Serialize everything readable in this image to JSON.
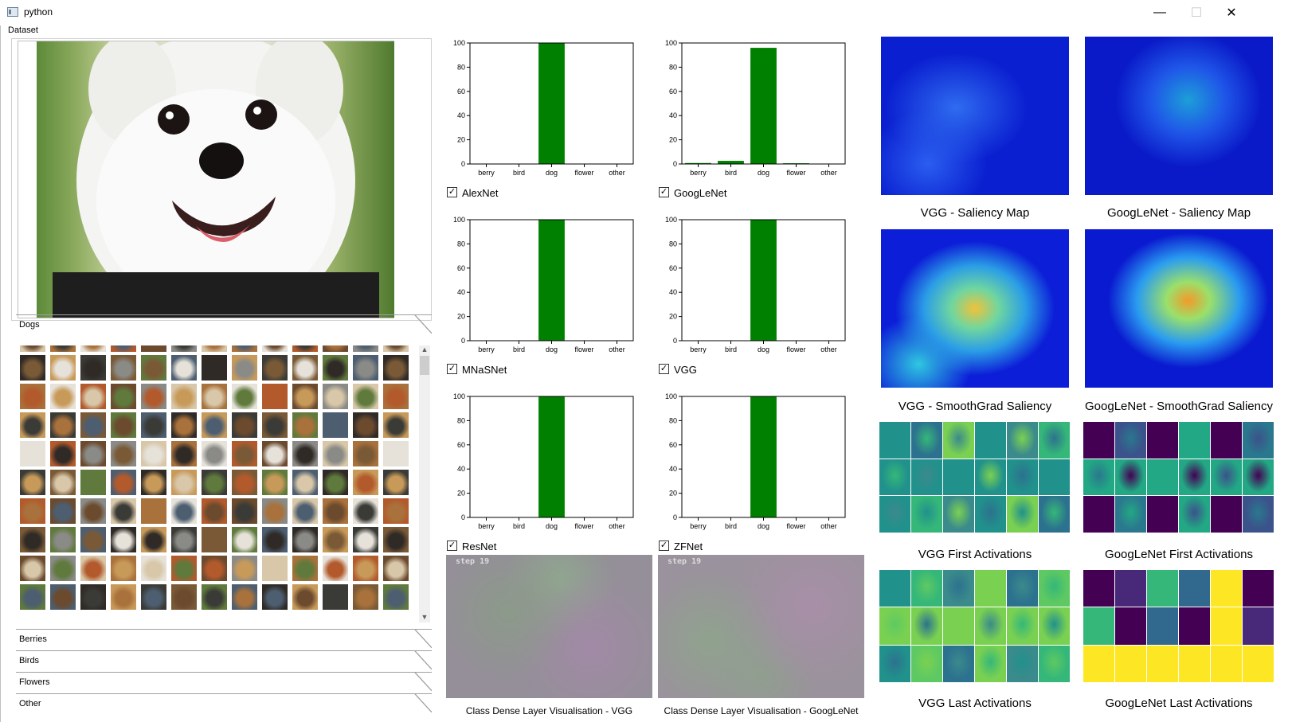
{
  "window": {
    "title": "python",
    "minimize_glyph": "—",
    "maximize_glyph": "☐",
    "close_glyph": "✕"
  },
  "dataset": {
    "group_label": "Dataset",
    "categories": [
      "Dogs",
      "Berries",
      "Birds",
      "Flowers",
      "Other"
    ],
    "active_category": "Dogs"
  },
  "scroll": {
    "up": "▲",
    "down": "▼"
  },
  "models": [
    {
      "name": "AlexNet",
      "checked": true,
      "check_glyph": "✓"
    },
    {
      "name": "GoogLeNet",
      "checked": true,
      "check_glyph": "✓"
    },
    {
      "name": "MNaSNet",
      "checked": true,
      "check_glyph": "✓"
    },
    {
      "name": "VGG",
      "checked": true,
      "check_glyph": "✓"
    },
    {
      "name": "ResNet",
      "checked": true,
      "check_glyph": "✓"
    },
    {
      "name": "ZFNet",
      "checked": true,
      "check_glyph": "✓"
    }
  ],
  "chart_data": [
    {
      "type": "bar",
      "categories": [
        "berry",
        "bird",
        "dog",
        "flower",
        "other"
      ],
      "values": [
        0,
        0,
        100,
        0,
        0
      ],
      "ylim": [
        0,
        100
      ],
      "yticks": [
        0,
        20,
        40,
        60,
        80,
        100
      ],
      "color": "#008000"
    },
    {
      "type": "bar",
      "categories": [
        "berry",
        "bird",
        "dog",
        "flower",
        "other"
      ],
      "values": [
        0.8,
        2.6,
        96,
        0.6,
        0
      ],
      "ylim": [
        0,
        100
      ],
      "yticks": [
        0,
        20,
        40,
        60,
        80,
        100
      ],
      "color": "#008000"
    },
    {
      "type": "bar",
      "categories": [
        "berry",
        "bird",
        "dog",
        "flower",
        "other"
      ],
      "values": [
        0,
        0,
        100,
        0,
        0
      ],
      "ylim": [
        0,
        100
      ],
      "yticks": [
        0,
        20,
        40,
        60,
        80,
        100
      ],
      "color": "#008000"
    },
    {
      "type": "bar",
      "categories": [
        "berry",
        "bird",
        "dog",
        "flower",
        "other"
      ],
      "values": [
        0,
        0,
        100,
        0,
        0
      ],
      "ylim": [
        0,
        100
      ],
      "yticks": [
        0,
        20,
        40,
        60,
        80,
        100
      ],
      "color": "#008000"
    },
    {
      "type": "bar",
      "categories": [
        "berry",
        "bird",
        "dog",
        "flower",
        "other"
      ],
      "values": [
        0,
        0,
        100,
        0,
        0
      ],
      "ylim": [
        0,
        100
      ],
      "yticks": [
        0,
        20,
        40,
        60,
        80,
        100
      ],
      "color": "#008000"
    },
    {
      "type": "bar",
      "categories": [
        "berry",
        "bird",
        "dog",
        "flower",
        "other"
      ],
      "values": [
        0,
        0,
        100,
        0,
        0
      ],
      "ylim": [
        0,
        100
      ],
      "yticks": [
        0,
        20,
        40,
        60,
        80,
        100
      ],
      "color": "#008000"
    }
  ],
  "dense_vis": [
    {
      "step_label": "step 19",
      "caption": "Class Dense Layer Visualisation - VGG"
    },
    {
      "step_label": "step 19",
      "caption": "Class Dense Layer Visualisation - GoogLeNet"
    }
  ],
  "visualisations": {
    "vgg_saliency": "VGG - Saliency Map",
    "googlenet_saliency": "GoogLeNet  - Saliency Map",
    "vgg_smoothgrad": "VGG - SmoothGrad Saliency",
    "googlenet_smoothgrad": "GoogLeNet  - SmoothGrad Saliency",
    "vgg_first": "VGG First Activations",
    "googlenet_first": "GoogLeNet First Activations",
    "vgg_last": "VGG Last Activations",
    "googlenet_last": "GoogLeNet Last Activations"
  },
  "colors": {
    "bar": "#008000",
    "saliency_bg": "#0a1fd0",
    "viridis_dark": "#440154",
    "viridis_teal": "#21918c",
    "viridis_yellow": "#fde725"
  }
}
